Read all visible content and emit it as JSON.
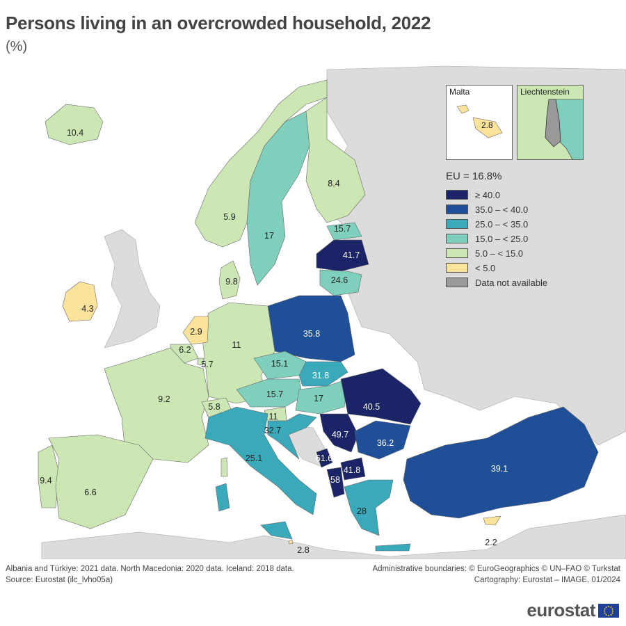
{
  "title": "Persons living in an overcrowded household, 2022",
  "subtitle": "(%)",
  "legend": {
    "eu_average": "EU = 16.8%",
    "classes": [
      {
        "label": "≥ 40.0",
        "color": "#1a2466"
      },
      {
        "label": "35.0 – < 40.0",
        "color": "#1f4f96"
      },
      {
        "label": "25.0 – < 35.0",
        "color": "#3aaabb"
      },
      {
        "label": "15.0 – < 25.0",
        "color": "#7ecfbc"
      },
      {
        "label": "5.0 – < 15.0",
        "color": "#cce7b4"
      },
      {
        "label": "< 5.0",
        "color": "#fbe39b"
      },
      {
        "label": "Data not available",
        "color": "#999999"
      }
    ]
  },
  "insets": {
    "malta": {
      "name": "Malta",
      "value": "2.8"
    },
    "liechtenstein": {
      "name": "Liechtenstein"
    }
  },
  "map_values": {
    "iceland": "10.4",
    "norway": "5.9",
    "sweden": "17",
    "finland": "8.4",
    "estonia": "15.7",
    "latvia": "41.7",
    "lithuania": "24.6",
    "ireland": "4.3",
    "denmark": "9.8",
    "netherlands": "2.9",
    "belgium": "6.2",
    "luxembourg": "5.7",
    "germany": "11",
    "poland": "35.8",
    "czechia": "15.1",
    "slovakia": "31.8",
    "austria": "15.7",
    "hungary": "17",
    "slovenia": "11",
    "croatia": "32.7",
    "switzerland": "5.8",
    "france": "9.2",
    "portugal": "9.4",
    "spain": "6.6",
    "italy": "25.1",
    "romania": "40.5",
    "serbia": "49.7",
    "bulgaria": "36.2",
    "montenegro": "61.6",
    "north_macedonia": "41.8",
    "albania": "58",
    "greece": "28",
    "turkiye": "39.1",
    "malta_main": "2.8",
    "cyprus": "2.2"
  },
  "notes": [
    "Albania and Türkiye: 2021 data. North Macedonia: 2020 data. Iceland: 2018 data.",
    "Source: Eurostat (ilc_lvho05a)"
  ],
  "credits": [
    "Administrative boundaries: © EuroGeographics © UN–FAO © Turkstat",
    "Cartography: Eurostat – IMAGE, 01/2024"
  ],
  "logo_text": "eurostat"
}
